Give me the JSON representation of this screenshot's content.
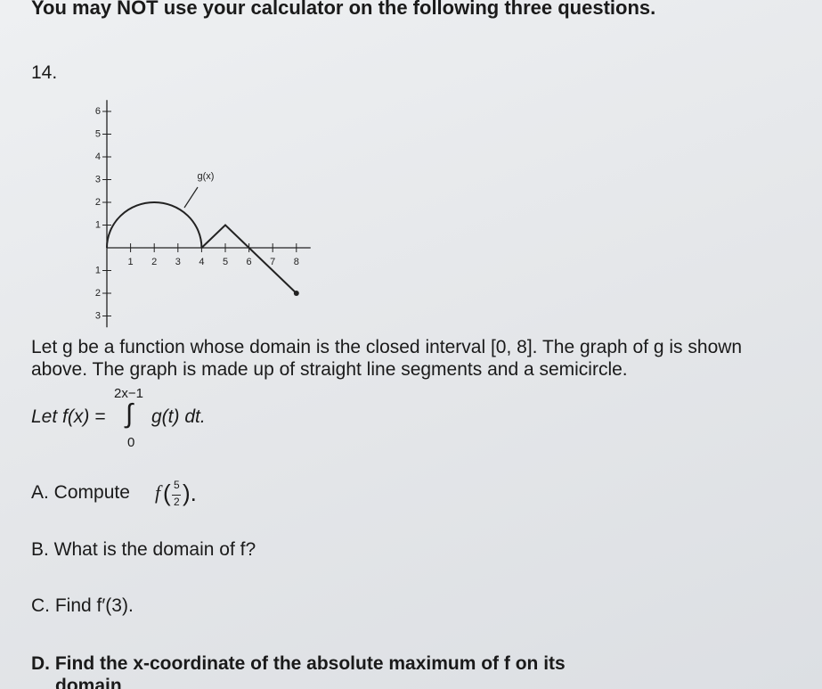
{
  "header": "You may NOT use your calculator on the following three questions.",
  "question_number": "14.",
  "figure": {
    "chart_data": {
      "type": "function-graph",
      "label": "g(x)",
      "xlim": [
        0,
        8.6
      ],
      "ylim": [
        -3.5,
        6.5
      ],
      "xticks": [
        1,
        2,
        3,
        4,
        5,
        6,
        7,
        8
      ],
      "yticks": [
        6,
        5,
        4,
        3,
        2,
        1,
        {
          "value": -1,
          "label": "1"
        },
        {
          "value": -2,
          "label": "2"
        },
        {
          "value": -3,
          "label": "3"
        }
      ],
      "semicircle": {
        "center": [
          2,
          0
        ],
        "radius": 2
      },
      "line_x": [
        4,
        5,
        8
      ],
      "line_y": [
        0,
        1,
        -2
      ],
      "color": "#222222"
    }
  },
  "body": {
    "intro": [
      "Let g be a function whose domain is the closed interval [0, 8]. The graph of g is shown",
      "above. The graph is made up of straight line segments and a semicircle."
    ],
    "definition": {
      "lead": "Let f(x) =",
      "upper": "2x−1",
      "integral": "∫",
      "lower": "0",
      "integrand": "g(t) dt."
    },
    "part_a": {
      "text": "A. Compute",
      "function": "f",
      "numerator": "5",
      "denominator": "2"
    },
    "part_b": "B. What is the domain of f?",
    "part_c": "C. Find f′(3).",
    "part_d": [
      "D. Find the x-coordinate of the absolute maximum of f on its",
      "domain"
    ]
  }
}
